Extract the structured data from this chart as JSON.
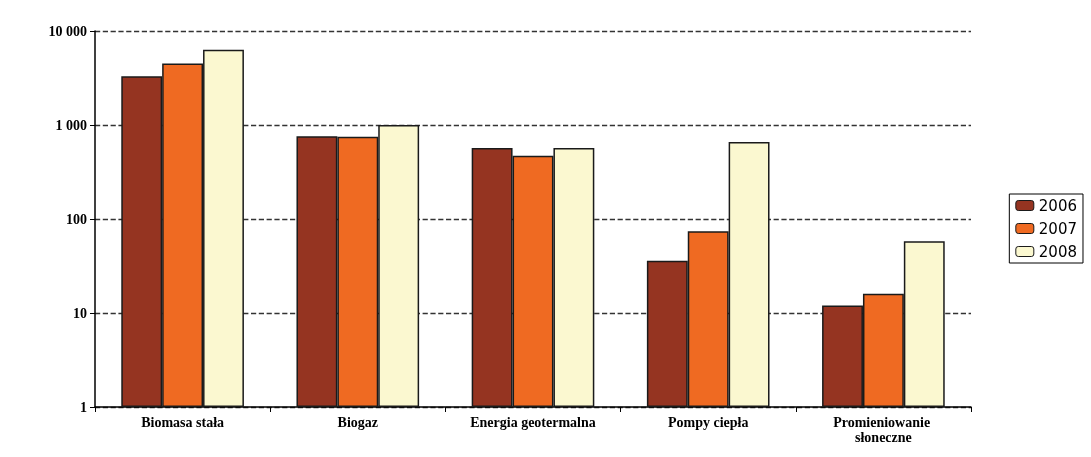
{
  "chart_data": {
    "type": "bar",
    "categories": [
      "Biomasa stała",
      "Biogaz",
      "Energia geotermalna",
      "Pompy ciepła",
      "Promieniowanie słoneczne"
    ],
    "series": [
      {
        "name": "2006",
        "color": "#953421",
        "values": [
          3300,
          760,
          570,
          36,
          12
        ]
      },
      {
        "name": "2007",
        "color": "#ef6a22",
        "values": [
          4500,
          750,
          470,
          74,
          16
        ]
      },
      {
        "name": "2008",
        "color": "#fbf8d0",
        "values": [
          6300,
          1000,
          570,
          660,
          58
        ]
      }
    ],
    "log": "y",
    "ylim": [
      1,
      10000
    ],
    "yticks": [
      1,
      10,
      100,
      {
        "value": 1000,
        "label": "1 000"
      },
      {
        "value": 10000,
        "label": "10 000"
      }
    ],
    "grid": "y",
    "line_style": "dashed",
    "legend": "right"
  }
}
